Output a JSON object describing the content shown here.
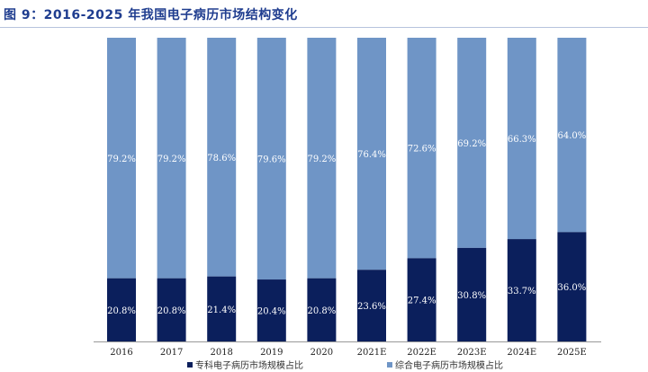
{
  "title": "图 9：2016-2025 年我国电子病历市场结构变化",
  "colors": {
    "specialty": "#0b1f5c",
    "general": "#6f95c6",
    "title": "#1f3d8f"
  },
  "chart_data": {
    "type": "bar",
    "stacked": true,
    "title": "图 9：2016-2025 年我国电子病历市场结构变化",
    "categories": [
      "2016",
      "2017",
      "2018",
      "2019",
      "2020",
      "2021E",
      "2022E",
      "2023E",
      "2024E",
      "2025E"
    ],
    "series": [
      {
        "name": "专科电子病历市场规模占比",
        "values": [
          20.8,
          20.8,
          21.4,
          20.4,
          20.8,
          23.6,
          27.4,
          30.8,
          33.7,
          36.0
        ],
        "labels": [
          "20.8%",
          "20.8%",
          "21.4%",
          "20.4%",
          "20.8%",
          "23.6%",
          "27.4%",
          "30.8%",
          "33.7%",
          "36.0%"
        ]
      },
      {
        "name": "综合电子病历市场规模占比",
        "values": [
          79.2,
          79.2,
          78.6,
          79.6,
          79.2,
          76.4,
          72.6,
          69.2,
          66.3,
          64.0
        ],
        "labels": [
          "79.2%",
          "79.2%",
          "78.6%",
          "79.6%",
          "79.2%",
          "76.4%",
          "72.6%",
          "69.2%",
          "66.3%",
          "64.0%"
        ]
      }
    ],
    "ylim": [
      0,
      100
    ],
    "legend_position": "bottom",
    "grid": false
  }
}
